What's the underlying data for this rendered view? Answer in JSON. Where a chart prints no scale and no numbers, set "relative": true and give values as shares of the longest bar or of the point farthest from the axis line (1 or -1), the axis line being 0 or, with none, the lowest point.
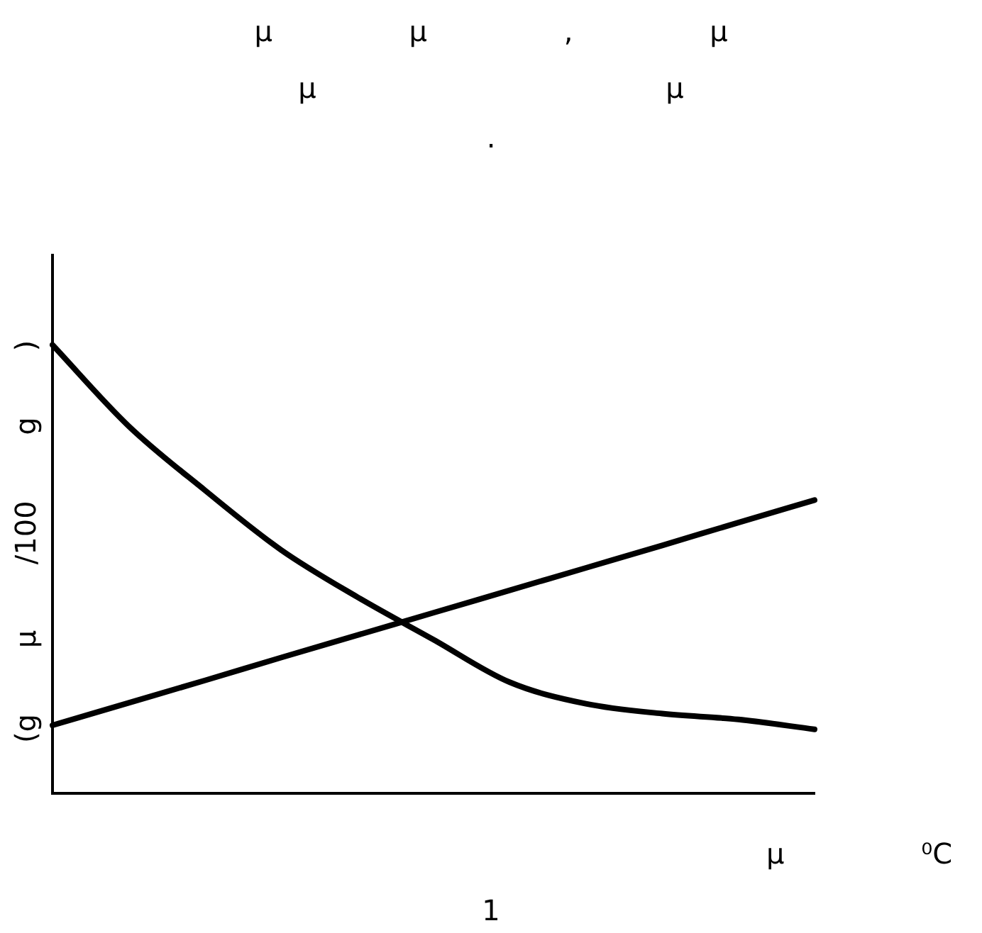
{
  "chart_data": {
    "type": "line",
    "title": "μ μ , μ",
    "subtitle": "μ μ",
    "ylabel": "(g μ /100 g )",
    "xlabel": "μ ⁰C",
    "annotations": [
      ".",
      "1"
    ],
    "relative": true,
    "categories": [
      null,
      null,
      null,
      null,
      null,
      null,
      null,
      null,
      null,
      null,
      null
    ],
    "series": [
      {
        "color": "#000000",
        "values": [
          1,
          0.819,
          0.676,
          0.543,
          0.438,
          0.343,
          0.248,
          0.2,
          0.178,
          0.165,
          0.143
        ]
      },
      {
        "color": "#000000",
        "values": [
          0.152,
          0.202,
          0.252,
          0.303,
          0.353,
          0.403,
          0.453,
          0.503,
          0.553,
          0.604,
          0.654
        ]
      }
    ],
    "grid": false,
    "legend": false,
    "marker": "none",
    "line_style": "solid"
  }
}
